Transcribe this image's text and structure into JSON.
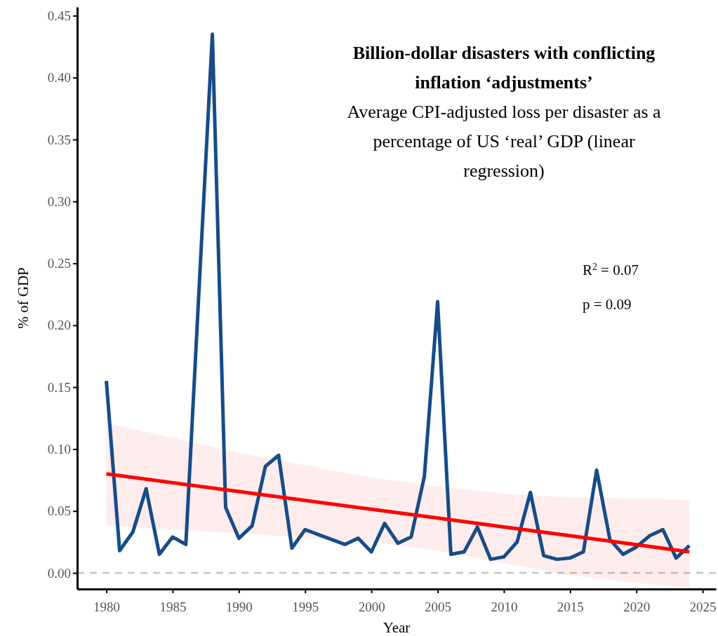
{
  "chart_data": {
    "type": "line",
    "title": "Billion-dollar disasters with conflicting inflation ‘adjustments’",
    "subtitle": "Average CPI-adjusted loss per disaster as a percentage of US ‘real’ GDP (linear regression)",
    "xlabel": "Year",
    "ylabel": "% of GDP",
    "xlim": [
      1977.8,
      2026
    ],
    "xticks": [
      1980,
      1985,
      1990,
      1995,
      2000,
      2005,
      2010,
      2015,
      2020,
      2025
    ],
    "ylim": [
      -0.013,
      0.457
    ],
    "yticks": [
      {
        "value": 0,
        "label": "0.00"
      },
      {
        "value": 0.05,
        "label": "0.05"
      },
      {
        "value": 0.1,
        "label": "0.10"
      },
      {
        "value": 0.15,
        "label": "0.15"
      },
      {
        "value": 0.2,
        "label": "0.20"
      },
      {
        "value": 0.25,
        "label": "0.25"
      },
      {
        "value": 0.3,
        "label": "0.30"
      },
      {
        "value": 0.35,
        "label": "0.35"
      },
      {
        "value": 0.4,
        "label": "0.40"
      },
      {
        "value": 0.45,
        "label": "0.45"
      }
    ],
    "series": [
      {
        "color": "#174c88",
        "x": [
          1980,
          1981,
          1982,
          1983,
          1984,
          1985,
          1986,
          1987,
          1988,
          1989,
          1990,
          1991,
          1992,
          1993,
          1994,
          1995,
          1996,
          1997,
          1998,
          1999,
          2000,
          2001,
          2002,
          2003,
          2004,
          2005,
          2006,
          2007,
          2008,
          2009,
          2010,
          2011,
          2012,
          2013,
          2014,
          2015,
          2016,
          2017,
          2018,
          2019,
          2020,
          2021,
          2022,
          2023,
          2024
        ],
        "values": [
          0.155,
          0.018,
          0.033,
          0.068,
          0.015,
          0.029,
          0.023,
          0.23,
          0.435,
          0.053,
          0.028,
          0.038,
          0.086,
          0.095,
          0.02,
          0.035,
          0.031,
          0.027,
          0.023,
          0.028,
          0.017,
          0.04,
          0.024,
          0.029,
          0.078,
          0.219,
          0.015,
          0.017,
          0.037,
          0.011,
          0.013,
          0.025,
          0.065,
          0.014,
          0.011,
          0.012,
          0.017,
          0.083,
          0.027,
          0.015,
          0.021,
          0.03,
          0.035,
          0.012,
          0.022
        ]
      },
      {
        "color": "#ff0000",
        "x": [
          1980,
          1990,
          2000,
          2005,
          2010,
          2015,
          2020,
          2024
        ],
        "values": [
          0.08,
          0.0657,
          0.0514,
          0.0443,
          0.0371,
          0.03,
          0.0228,
          0.017
        ],
        "lower": [
          0.038,
          0.032,
          0.025,
          0.018,
          0.008,
          -0.002,
          -0.008,
          -0.012
        ],
        "upper": [
          0.121,
          0.097,
          0.077,
          0.07,
          0.064,
          0.061,
          0.06,
          0.059
        ]
      }
    ],
    "ref_lines": [
      {
        "axis": "y",
        "value": 0,
        "color": "#c4c4c4",
        "line_style": "dashed"
      }
    ],
    "annotations": [
      "R$^{2}$ = 0.07",
      "p = 0.09"
    ]
  }
}
